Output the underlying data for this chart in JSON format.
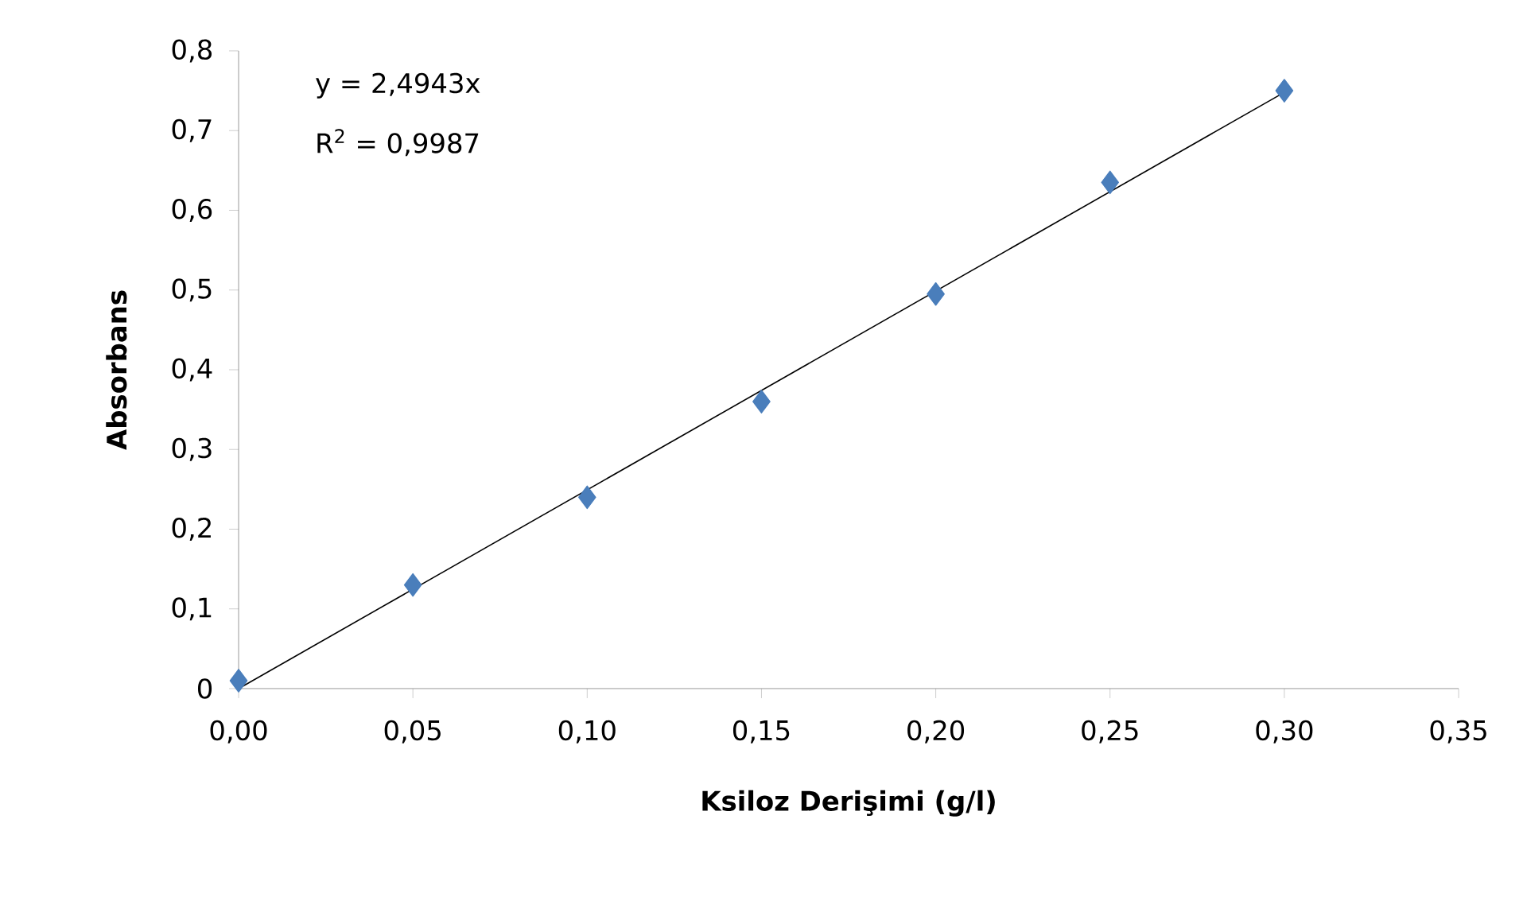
{
  "chart_data": {
    "type": "scatter",
    "xlabel": "Ksiloz Derişimi (g/l)",
    "ylabel": "Absorbans",
    "x": [
      0,
      0.05,
      0.1,
      0.15,
      0.2,
      0.25,
      0.3
    ],
    "series": [
      {
        "color": "#4a7ebb",
        "marker": "diamond",
        "values": [
          0.01,
          0.13,
          0.24,
          0.36,
          0.495,
          0.635,
          0.75
        ]
      },
      {
        "type": "line",
        "color": "#000000",
        "marker": "none",
        "x": [
          0,
          0.3
        ],
        "values": [
          0,
          0.748
        ]
      }
    ],
    "annotations": [
      "y = 2,4943x",
      "R$^{2}$ = 0,9987"
    ],
    "xlim": [
      0,
      0.35
    ],
    "ylim": [
      0,
      0.8
    ],
    "xticks": [
      {
        "value": 0,
        "label": "0,00"
      },
      {
        "value": 0.05,
        "label": "0,05"
      },
      {
        "value": 0.1,
        "label": "0,10"
      },
      {
        "value": 0.15,
        "label": "0,15"
      },
      {
        "value": 0.2,
        "label": "0,20"
      },
      {
        "value": 0.25,
        "label": "0,25"
      },
      {
        "value": 0.3,
        "label": "0,30"
      },
      {
        "value": 0.35,
        "label": "0,35"
      }
    ],
    "yticks": [
      0,
      {
        "value": 0.1,
        "label": "0,1"
      },
      {
        "value": 0.2,
        "label": "0,2"
      },
      {
        "value": 0.3,
        "label": "0,3"
      },
      {
        "value": 0.4,
        "label": "0,4"
      },
      {
        "value": 0.5,
        "label": "0,5"
      },
      {
        "value": 0.6,
        "label": "0,6"
      },
      {
        "value": 0.7,
        "label": "0,7"
      },
      {
        "value": 0.8,
        "label": "0,8"
      }
    ],
    "grid": false
  }
}
